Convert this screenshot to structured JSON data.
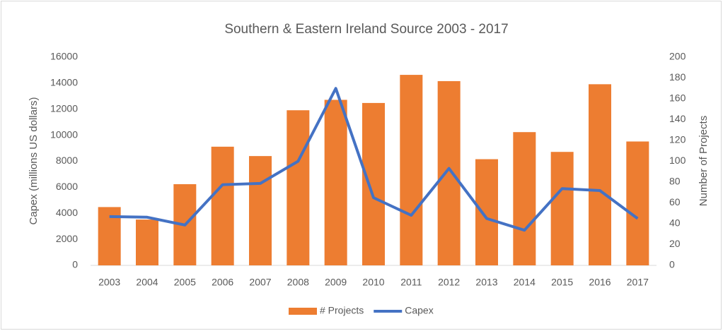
{
  "chart_data": {
    "type": "bar_line",
    "title": "Southern & Eastern Ireland Source 2003 - 2017",
    "y_label": "Capex (millions US dollars)",
    "y2_label": "Number of Projects",
    "categories": [
      "2003",
      "2004",
      "2005",
      "2006",
      "2007",
      "2008",
      "2009",
      "2010",
      "2011",
      "2012",
      "2013",
      "2014",
      "2015",
      "2016",
      "2017"
    ],
    "series": [
      {
        "name": "# Projects",
        "type": "bar",
        "axis": "y2",
        "color": "#ed7d31",
        "values": [
          56,
          44,
          78,
          114,
          105,
          149,
          159,
          156,
          183,
          177,
          102,
          128,
          109,
          174,
          119
        ]
      },
      {
        "name": "Capex",
        "type": "line",
        "color": "#4472c4",
        "values": [
          3750,
          3700,
          3100,
          6200,
          6300,
          8000,
          13600,
          5200,
          3850,
          7450,
          3600,
          2700,
          5900,
          5750,
          3600
        ]
      }
    ],
    "ylim": [
      0,
      16000
    ],
    "yticks": [
      0,
      2000,
      4000,
      6000,
      8000,
      10000,
      12000,
      14000,
      16000
    ],
    "y2lim": [
      0,
      200
    ],
    "y2ticks": [
      0,
      20,
      40,
      60,
      80,
      100,
      120,
      140,
      160,
      180,
      200
    ],
    "legend": "bottom"
  }
}
